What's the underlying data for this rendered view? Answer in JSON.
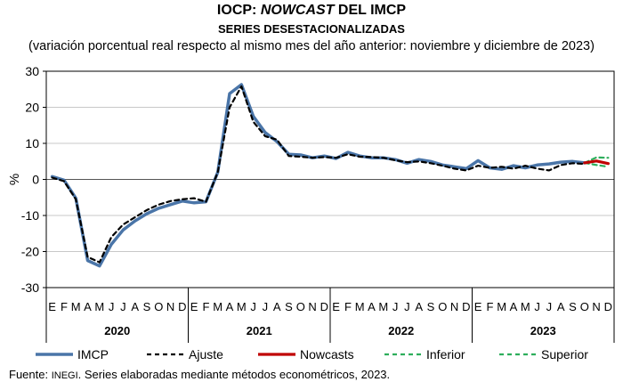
{
  "title": {
    "prefix": "IOCP: ",
    "italic": "NOWCAST",
    "suffix": " DEL IMCP",
    "subtitle": "SERIES DESESTACIONALIZADAS",
    "note": "(variación porcentual real respecto al mismo mes del año anterior: noviembre y diciembre de 2023)"
  },
  "source": {
    "prefix": "Fuente: ",
    "org": "INEGI",
    "text": ". Series elaboradas mediante métodos econométricos, 2023."
  },
  "colors": {
    "imcp": "#4a75a8",
    "ajuste": "#000000",
    "nowcast": "#c00000",
    "inferior": "#2eae5c",
    "superior": "#2eae5c"
  },
  "chart_data": {
    "type": "line",
    "ylabel": "%",
    "ylim": [
      -30,
      30
    ],
    "yticks": [
      30,
      20,
      10,
      0,
      -10,
      -20,
      -30
    ],
    "month_labels": [
      "E",
      "F",
      "M",
      "A",
      "M",
      "J",
      "J",
      "A",
      "S",
      "O",
      "N",
      "D"
    ],
    "years": [
      "2020",
      "2021",
      "2022",
      "2023"
    ],
    "grid": true,
    "legend_position": "bottom",
    "series": [
      {
        "name": "IMCP",
        "start_index": 0,
        "values": [
          0.8,
          -0.2,
          -5.2,
          -22.5,
          -24.0,
          -18.0,
          -14.0,
          -11.5,
          -9.5,
          -8.0,
          -7.0,
          -6.0,
          -6.5,
          -6.2,
          2.0,
          23.8,
          26.3,
          17.5,
          13.0,
          10.5,
          7.0,
          6.8,
          6.0,
          6.5,
          5.8,
          7.5,
          6.5,
          6.0,
          6.0,
          5.5,
          4.5,
          5.5,
          5.0,
          4.0,
          3.5,
          3.0,
          5.2,
          3.2,
          2.8,
          3.8,
          3.2,
          4.0,
          4.3,
          4.8,
          5.0,
          4.6
        ]
      },
      {
        "name": "Ajuste",
        "start_index": 0,
        "values": [
          0.5,
          -0.5,
          -5.5,
          -21.5,
          -23.0,
          -16.0,
          -12.5,
          -10.5,
          -8.5,
          -7.0,
          -6.0,
          -5.5,
          -5.2,
          -6.2,
          2.0,
          20.0,
          25.8,
          16.0,
          12.0,
          11.0,
          6.5,
          6.3,
          6.0,
          6.2,
          6.0,
          7.0,
          6.3,
          6.2,
          6.0,
          5.3,
          4.8,
          5.0,
          4.5,
          3.8,
          3.0,
          2.5,
          3.8,
          3.2,
          3.5,
          3.0,
          3.8,
          3.0,
          2.5,
          4.0,
          4.5,
          4.3
        ]
      },
      {
        "name": "Nowcasts",
        "start_index": 45,
        "values": [
          4.6,
          5.1,
          4.4
        ]
      },
      {
        "name": "Inferior",
        "start_index": 45,
        "values": [
          4.6,
          4.0,
          3.5
        ]
      },
      {
        "name": "Superior",
        "start_index": 45,
        "values": [
          4.6,
          6.1,
          6.0
        ]
      }
    ]
  }
}
